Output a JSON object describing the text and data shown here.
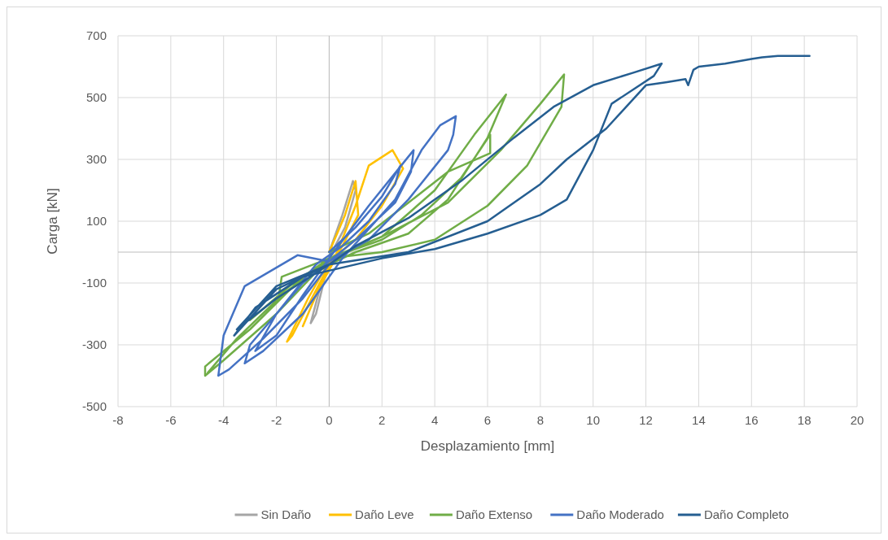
{
  "chart_data": {
    "type": "line",
    "xlabel": "Desplazamiento [mm]",
    "ylabel": "Carga [kN]",
    "xlim": [
      -8,
      20
    ],
    "ylim": [
      -500,
      700
    ],
    "xticks": [
      -8,
      -6,
      -4,
      -2,
      0,
      2,
      4,
      6,
      8,
      10,
      12,
      14,
      16,
      18,
      20
    ],
    "yticks": [
      -500,
      -300,
      -100,
      100,
      300,
      500,
      700
    ],
    "grid": true,
    "legend": "bottom",
    "marker": "none",
    "line_style": "solid",
    "series": [
      {
        "name": "Sin Daño",
        "color": "#a5a5a5",
        "x": [
          0,
          0.5,
          0.9,
          1,
          0.6,
          0.1,
          -0.3,
          -0.7,
          -0.5,
          -0.1,
          0.1
        ],
        "values": [
          0,
          120,
          230,
          200,
          80,
          0,
          -100,
          -230,
          -200,
          -60,
          20
        ]
      },
      {
        "name": "Daño Leve",
        "color": "#ffc000",
        "x": [
          0,
          0.6,
          1,
          1.1,
          0.5,
          -0.4,
          -1,
          -0.8,
          -0.2,
          0.3,
          1,
          1.5,
          2.4,
          2.8,
          2,
          1,
          0,
          -0.8,
          -1.6,
          -1.4,
          -0.6,
          0.2
        ],
        "values": [
          0,
          120,
          230,
          120,
          20,
          -120,
          -240,
          -200,
          -80,
          0,
          150,
          280,
          330,
          270,
          150,
          40,
          -30,
          -150,
          -290,
          -270,
          -140,
          -10
        ]
      },
      {
        "name": "Daño Extenso",
        "color": "#70ad47",
        "x": [
          0,
          1.5,
          3,
          4.5,
          6.1,
          6.1,
          5,
          3.5,
          2,
          0,
          -1.8,
          -1.9,
          -3,
          -1.5,
          0,
          2,
          4,
          5.5,
          6.7,
          6,
          4.5,
          3,
          1,
          -1,
          -3,
          -4.7,
          -4.7,
          -4,
          -2,
          0,
          2,
          4.5,
          6.5,
          8,
          8.9,
          8.8,
          7.5,
          6,
          4,
          2,
          0,
          -1.8,
          -3.5,
          -4.6
        ],
        "values": [
          0,
          60,
          160,
          260,
          320,
          380,
          240,
          120,
          40,
          -20,
          -80,
          -140,
          -220,
          -110,
          -20,
          50,
          200,
          380,
          510,
          370,
          170,
          60,
          0,
          -80,
          -250,
          -370,
          -400,
          -350,
          -200,
          -20,
          50,
          160,
          330,
          480,
          575,
          470,
          280,
          150,
          40,
          0,
          -20,
          -140,
          -280,
          -390
        ]
      },
      {
        "name": "Daño Moderado",
        "color": "#4472c4",
        "x": [
          0,
          1,
          2,
          2.7,
          2.5,
          1.5,
          0.5,
          -0.5,
          -2,
          -2.8,
          -2,
          -1,
          0,
          1.5,
          3.2,
          3.1,
          2.5,
          1,
          -1,
          -3,
          -3.2,
          -2.5,
          -1,
          0.5,
          2.5,
          3.5,
          4.2,
          4.8,
          4.7,
          4.5,
          3,
          1.5,
          0,
          -1.2,
          -3.2,
          -4,
          -4.2,
          -3.8,
          -2.5,
          -1,
          0,
          1
        ],
        "values": [
          0,
          80,
          180,
          280,
          220,
          100,
          20,
          -40,
          -200,
          -320,
          -270,
          -140,
          -20,
          150,
          330,
          260,
          160,
          40,
          -100,
          -300,
          -360,
          -320,
          -200,
          -20,
          170,
          330,
          410,
          440,
          380,
          330,
          170,
          40,
          -30,
          -10,
          -110,
          -270,
          -400,
          -380,
          -280,
          -150,
          -40,
          20
        ]
      },
      {
        "name": "Daño Completo",
        "color": "#255e91",
        "x": [
          0,
          -2,
          -3.6,
          -2.8,
          -1,
          2,
          4,
          6,
          8,
          9,
          10,
          10.7,
          12.3,
          12.6,
          11.5,
          10,
          8.5,
          7,
          5,
          3,
          1,
          0,
          -2,
          -3.5,
          -2,
          0,
          3,
          6,
          8,
          9,
          10.5,
          12,
          12.8,
          13.5,
          13.6,
          13.8,
          14,
          15,
          16,
          16.4,
          17,
          18.2
        ],
        "values": [
          -40,
          -120,
          -270,
          -180,
          -80,
          -20,
          10,
          60,
          120,
          170,
          330,
          480,
          570,
          610,
          580,
          540,
          470,
          370,
          230,
          110,
          20,
          -40,
          -110,
          -250,
          -150,
          -40,
          0,
          100,
          220,
          300,
          400,
          540,
          550,
          560,
          540,
          590,
          600,
          610,
          625,
          630,
          635,
          635
        ]
      }
    ]
  }
}
